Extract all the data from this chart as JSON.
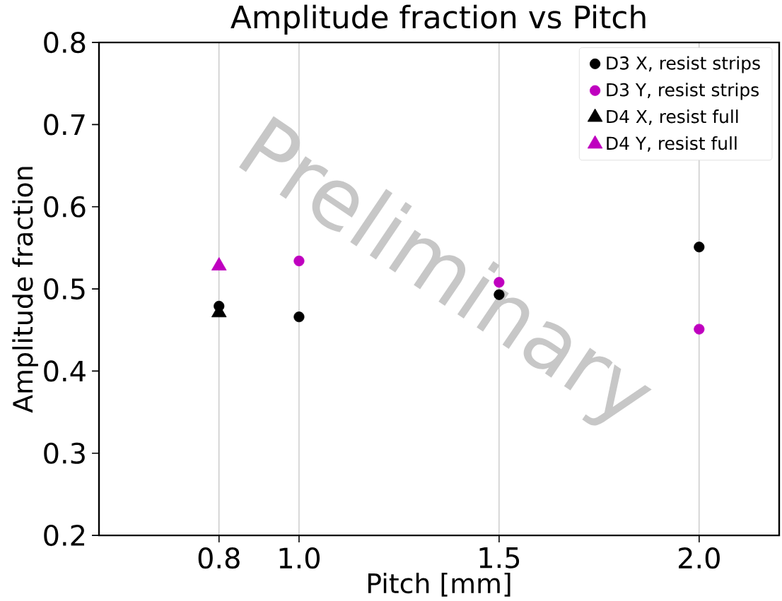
{
  "chart_data": {
    "type": "scatter",
    "title": "Amplitude fraction vs Pitch",
    "xlabel": "Pitch [mm]",
    "ylabel": "Amplitude fraction",
    "annotations": [
      "Preliminary"
    ],
    "xlim": [
      0.5,
      2.2
    ],
    "xticks": [
      0.8,
      {
        "value": 1.0,
        "label": "1.0"
      },
      1.5,
      {
        "value": 2.0,
        "label": "2.0"
      }
    ],
    "ylim": [
      0.2,
      0.8
    ],
    "yticks": [
      0.2,
      0.3,
      0.4,
      0.5,
      0.6,
      0.7,
      0.8
    ],
    "grid": "x",
    "legend": "top right",
    "series": [
      {
        "name": "D3 X, resist strips",
        "color": "#000000",
        "marker": "circle",
        "x": [
          0.8,
          1.0,
          1.5,
          2.0
        ],
        "values": [
          0.479,
          0.466,
          0.493,
          0.551
        ]
      },
      {
        "name": "D3 Y, resist strips",
        "color": "#bf00bf",
        "marker": "circle",
        "x": [
          1.0,
          1.5,
          2.0
        ],
        "values": [
          0.534,
          0.508,
          0.451
        ]
      },
      {
        "name": "D4 X, resist full",
        "color": "#000000",
        "marker": "triangle",
        "x": [
          0.8
        ],
        "values": [
          0.471
        ]
      },
      {
        "name": "D4 Y, resist full",
        "color": "#bf00bf",
        "marker": "triangle",
        "x": [
          0.8
        ],
        "values": [
          0.528
        ]
      }
    ]
  }
}
